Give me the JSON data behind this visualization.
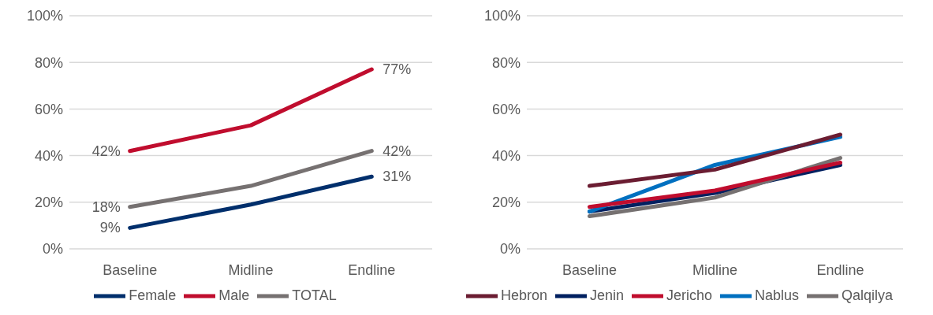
{
  "chart_data": [
    {
      "type": "line",
      "categories": [
        "Baseline",
        "Midline",
        "Endline"
      ],
      "ylim": [
        0,
        100
      ],
      "yticks": [
        {
          "value": 0,
          "label": "0%"
        },
        {
          "value": 20,
          "label": "20%"
        },
        {
          "value": 40,
          "label": "40%"
        },
        {
          "value": 60,
          "label": "60%"
        },
        {
          "value": 80,
          "label": "80%"
        },
        {
          "value": 100,
          "label": "100%"
        }
      ],
      "grid": "y",
      "legend": "bottom",
      "marker": "none",
      "series": [
        {
          "name": "TOTAL",
          "color": "#767171",
          "values": [
            18,
            27,
            42
          ],
          "value_labels": [
            "18%",
            null,
            "42%"
          ]
        },
        {
          "name": "Male",
          "color": "#c00d2e",
          "values": [
            42,
            53,
            77
          ],
          "value_labels": [
            "42%",
            null,
            "77%"
          ]
        },
        {
          "name": "Female",
          "color": "#002f6c",
          "values": [
            9,
            19,
            31
          ],
          "value_labels": [
            "9%",
            null,
            "31%"
          ]
        }
      ]
    },
    {
      "type": "line",
      "categories": [
        "Baseline",
        "Midline",
        "Endline"
      ],
      "ylim": [
        0,
        100
      ],
      "yticks": [
        {
          "value": 0,
          "label": "0%"
        },
        {
          "value": 20,
          "label": "20%"
        },
        {
          "value": 40,
          "label": "40%"
        },
        {
          "value": 60,
          "label": "60%"
        },
        {
          "value": 80,
          "label": "80%"
        },
        {
          "value": 100,
          "label": "100%"
        }
      ],
      "grid": "y",
      "legend": "bottom",
      "marker": "none",
      "series": [
        {
          "name": "Jenin",
          "color": "#002060",
          "values": [
            16,
            24,
            36
          ]
        },
        {
          "name": "Nablus",
          "color": "#0070c0",
          "values": [
            16,
            36,
            48
          ]
        },
        {
          "name": "Qalqilya",
          "color": "#767171",
          "values": [
            14,
            22,
            39
          ]
        },
        {
          "name": "Jericho",
          "color": "#c00d2e",
          "values": [
            18,
            25,
            37
          ]
        },
        {
          "name": "Hebron",
          "color": "#6b1d32",
          "values": [
            27,
            34,
            49
          ]
        }
      ]
    }
  ]
}
